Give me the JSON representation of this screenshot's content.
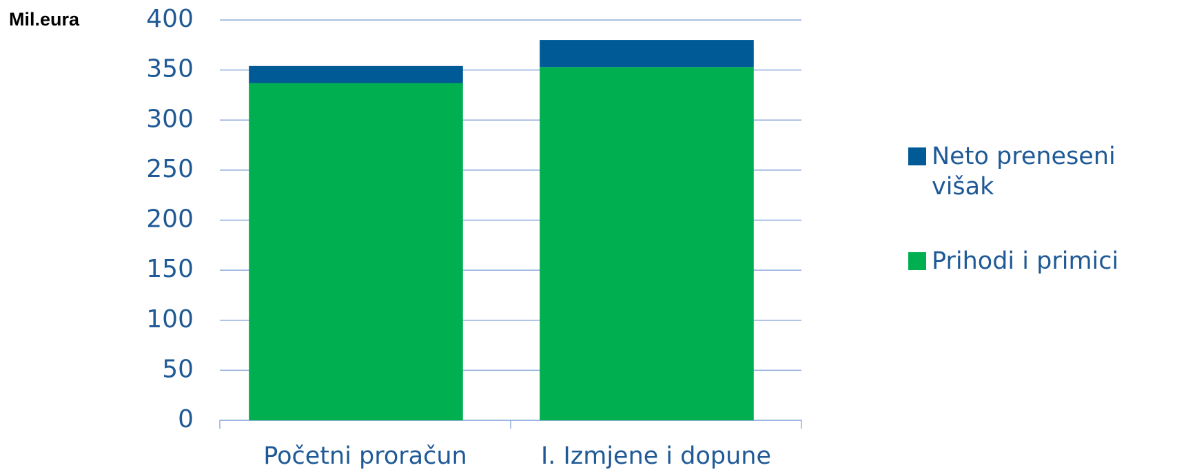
{
  "chart_data": {
    "type": "bar",
    "stacked": true,
    "y_label": "Mil.eura",
    "categories": [
      "Početni proračun",
      "I. Izmjene i dopune"
    ],
    "series": [
      {
        "name": "Prihodi i primici",
        "color": "#00b050",
        "values": [
          337,
          353
        ]
      },
      {
        "name": "Neto preneseni višak",
        "color": "#005a96",
        "values": [
          17,
          27
        ]
      }
    ],
    "ylim": [
      0,
      400
    ],
    "yticks": [
      0,
      50,
      100,
      150,
      200,
      250,
      300,
      350,
      400
    ],
    "grid": true,
    "legend": "right"
  }
}
